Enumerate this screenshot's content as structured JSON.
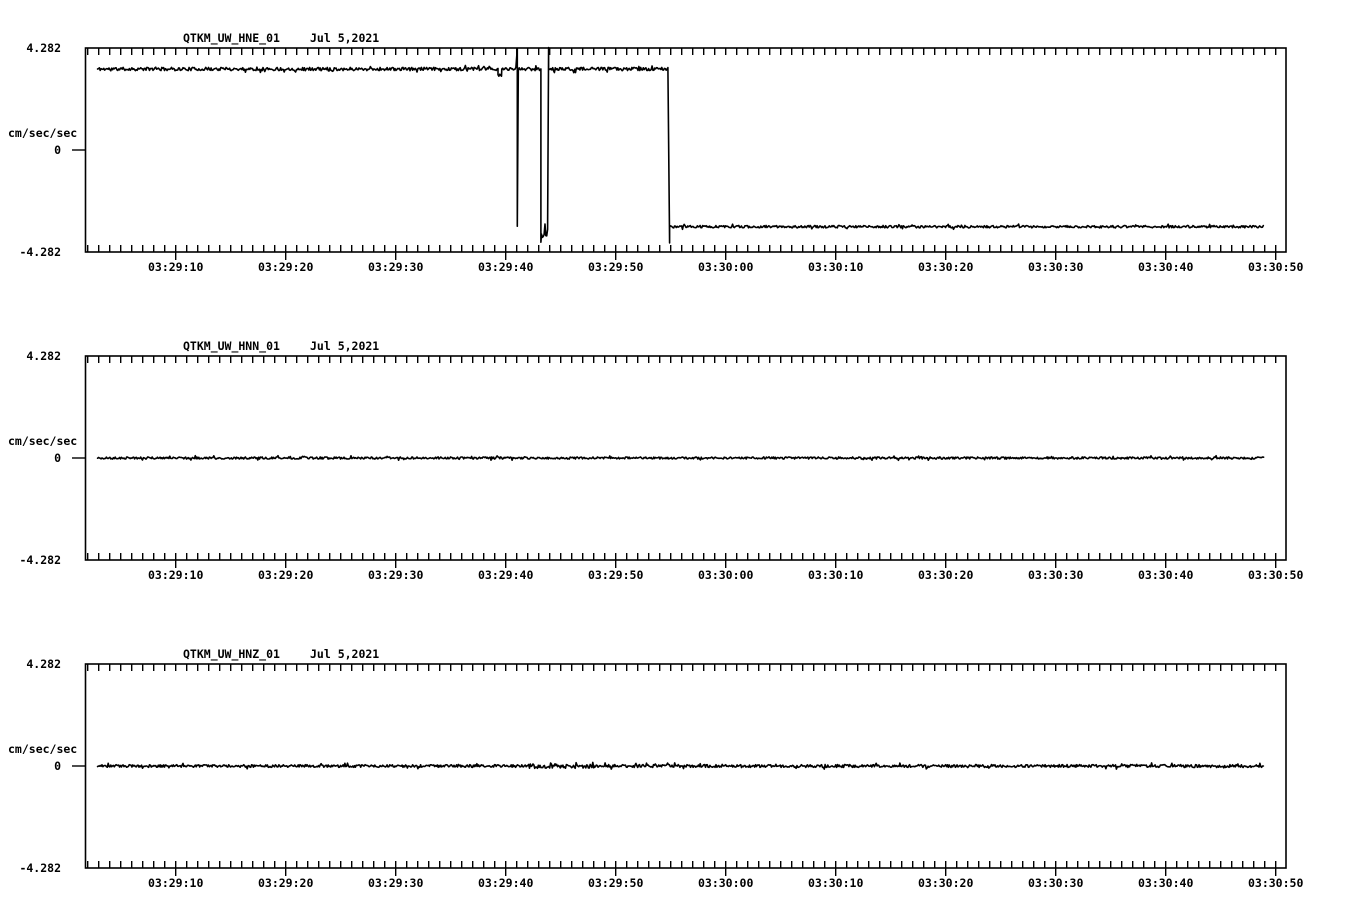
{
  "page": {
    "background": "#ffffff",
    "foreground": "#000000",
    "description": "Three-channel seismogram strip display for station QTKM (UW network), channels HNE, HNN, HNZ"
  },
  "axis": {
    "y_max_label": "4.282",
    "y_zero_label": "0",
    "y_min_label": "-4.282",
    "y_unit": "cm/sec/sec",
    "y_range": [
      -4.282,
      4.282
    ],
    "x_tick_labels": [
      "03:29:10",
      "03:29:20",
      "03:29:30",
      "03:29:40",
      "03:29:50",
      "03:30:00",
      "03:30:10",
      "03:30:20",
      "03:30:30",
      "03:30:40",
      "03:30:50"
    ],
    "x_tick_seconds": [
      10,
      20,
      30,
      40,
      50,
      60,
      70,
      80,
      90,
      100,
      110
    ],
    "x_minor_tick_interval_s": 1,
    "x_range_seconds": [
      1.8,
      110.9
    ]
  },
  "chart_data": [
    {
      "type": "line",
      "title": "QTKM_UW_HNE_01",
      "date": "Jul 5,2021",
      "ylabel": "cm/sec/sec",
      "ylim": [
        -4.282,
        4.282
      ],
      "x_tick_labels": [
        "03:29:10",
        "03:29:20",
        "03:29:30",
        "03:29:40",
        "03:29:50",
        "03:30:00",
        "03:30:10",
        "03:30:20",
        "03:30:30",
        "03:30:40",
        "03:30:50"
      ],
      "summary": "Offset trace at +3.4 cm/sec/sec until ~03:29:55; notch at 03:29:39.5; full-scale spike at 03:29:41; dropout to -3.5 during 03:29:43.2-43.9 ending in +4.3 spike; steps down to -3.2 and holds to 03:30:49",
      "series": {
        "units": "cm/sec/sec",
        "events": [
          {
            "type": "seg",
            "t0": 2.9,
            "t1": 39.3,
            "v": 3.4,
            "noise": 0.07
          },
          {
            "type": "seg",
            "t0": 39.3,
            "t1": 39.65,
            "v": 3.1,
            "noise": 0.1
          },
          {
            "type": "seg",
            "t0": 39.65,
            "t1": 41.0,
            "v": 3.4,
            "noise": 0.07
          },
          {
            "type": "spike",
            "t": 41.05,
            "v1": 4.25,
            "v2": -3.2
          },
          {
            "type": "seg",
            "t0": 41.15,
            "t1": 43.1,
            "v": 3.4,
            "noise": 0.07
          },
          {
            "type": "spike",
            "t": 43.2,
            "v1": 3.4,
            "v2": -3.87
          },
          {
            "type": "seg",
            "t0": 43.25,
            "t1": 43.85,
            "v": -3.5,
            "noise": 0.22
          },
          {
            "type": "spike",
            "t": 43.9,
            "v1": 4.3,
            "v2": 3.4
          },
          {
            "type": "seg",
            "t0": 43.95,
            "t1": 54.8,
            "v": 3.4,
            "noise": 0.07
          },
          {
            "type": "spike",
            "t": 54.9,
            "v1": -3.9,
            "v2": -3.25
          },
          {
            "type": "seg",
            "t0": 54.95,
            "t1": 108.9,
            "v": -3.22,
            "noise": 0.05
          }
        ]
      }
    },
    {
      "type": "line",
      "title": "QTKM_UW_HNN_01",
      "date": "Jul 5,2021",
      "ylabel": "cm/sec/sec",
      "ylim": [
        -4.282,
        4.282
      ],
      "x_tick_labels": [
        "03:29:10",
        "03:29:20",
        "03:29:30",
        "03:29:40",
        "03:29:50",
        "03:30:00",
        "03:30:10",
        "03:30:20",
        "03:30:30",
        "03:30:40",
        "03:30:50"
      ],
      "summary": "Flat low-amplitude noise centered on 0 cm/sec/sec for the whole window",
      "series": {
        "units": "cm/sec/sec",
        "events": [
          {
            "type": "seg",
            "t0": 2.9,
            "t1": 108.9,
            "v": 0,
            "noise": 0.045
          }
        ]
      }
    },
    {
      "type": "line",
      "title": "QTKM_UW_HNZ_01",
      "date": "Jul 5,2021",
      "ylabel": "cm/sec/sec",
      "ylim": [
        -4.282,
        4.282
      ],
      "x_tick_labels": [
        "03:29:10",
        "03:29:20",
        "03:29:30",
        "03:29:40",
        "03:29:50",
        "03:30:00",
        "03:30:10",
        "03:30:20",
        "03:30:30",
        "03:30:40",
        "03:30:50"
      ],
      "summary": "Flat low-amplitude noise centered on 0 cm/sec/sec, slightly denser around 03:29:42-03:29:48",
      "series": {
        "units": "cm/sec/sec",
        "events": [
          {
            "type": "seg",
            "t0": 2.9,
            "t1": 42.0,
            "v": 0,
            "noise": 0.055
          },
          {
            "type": "seg",
            "t0": 42.0,
            "t1": 48.0,
            "v": 0,
            "noise": 0.1
          },
          {
            "type": "seg",
            "t0": 48.0,
            "t1": 108.9,
            "v": 0,
            "noise": 0.06
          }
        ]
      }
    }
  ]
}
